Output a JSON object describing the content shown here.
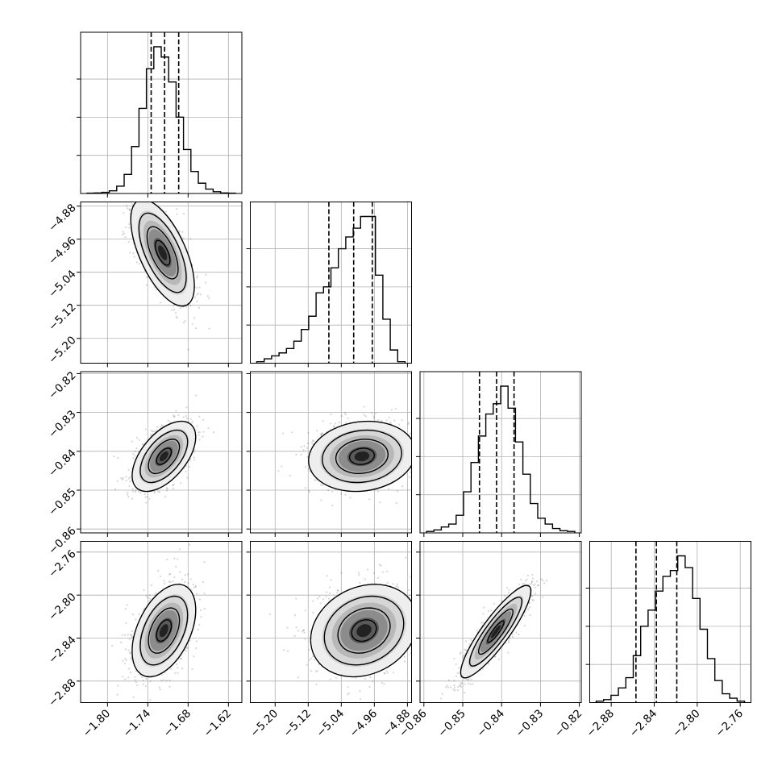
{
  "chart_data": {
    "type": "corner",
    "description_free": true,
    "grid": true,
    "colors": {
      "hist": "#000000",
      "quantile": "#000000",
      "grid": "#b0b0b0",
      "points": "#444444"
    },
    "params": [
      {
        "range": [
          -1.84,
          -1.6
        ],
        "ticks": [
          -1.8,
          -1.74,
          -1.68,
          -1.62
        ],
        "tick_labels": [
          "−1.80",
          "−1.74",
          "−1.68",
          "−1.62"
        ],
        "quantiles": [
          -1.735,
          -1.715,
          -1.694
        ],
        "hist_bins": [
          0.002,
          0.004,
          0.008,
          0.018,
          0.05,
          0.13,
          0.32,
          0.58,
          0.85,
          1.0,
          0.93,
          0.76,
          0.52,
          0.3,
          0.15,
          0.07,
          0.03,
          0.012,
          0.004,
          0.002
        ]
      },
      {
        "range": [
          -5.26,
          -4.87
        ],
        "ticks": [
          -5.2,
          -5.12,
          -5.04,
          -4.96,
          -4.88
        ],
        "tick_labels": [
          "−5.20",
          "−5.12",
          "−5.04",
          "−4.96",
          "−4.88"
        ],
        "quantiles": [
          -5.07,
          -5.01,
          -4.965
        ],
        "hist_bins": [
          0.01,
          0.03,
          0.05,
          0.07,
          0.1,
          0.15,
          0.23,
          0.32,
          0.48,
          0.52,
          0.65,
          0.78,
          0.86,
          0.92,
          1.0,
          1.0,
          0.6,
          0.3,
          0.09,
          0.01
        ]
      },
      {
        "range": [
          -0.861,
          -0.8195
        ],
        "ticks": [
          -0.86,
          -0.85,
          -0.84,
          -0.83,
          -0.82
        ],
        "tick_labels": [
          "−0.86",
          "−0.85",
          "−0.84",
          "−0.83",
          "−0.82"
        ],
        "quantiles": [
          -0.8457,
          -0.8413,
          -0.8368
        ],
        "hist_bins": [
          0.01,
          0.02,
          0.04,
          0.06,
          0.12,
          0.28,
          0.48,
          0.66,
          0.81,
          0.88,
          1.0,
          0.85,
          0.62,
          0.4,
          0.2,
          0.1,
          0.06,
          0.03,
          0.015,
          0.01
        ]
      },
      {
        "range": [
          -2.9,
          -2.75
        ],
        "ticks": [
          -2.88,
          -2.84,
          -2.8,
          -2.76
        ],
        "tick_labels": [
          "−2.88",
          "−2.84",
          "−2.80",
          "−2.76"
        ],
        "quantiles": [
          -2.857,
          -2.838,
          -2.819
        ],
        "hist_bins": [
          0.01,
          0.02,
          0.05,
          0.1,
          0.17,
          0.32,
          0.52,
          0.63,
          0.76,
          0.86,
          0.9,
          1.0,
          0.92,
          0.71,
          0.5,
          0.3,
          0.15,
          0.06,
          0.03,
          0.01
        ]
      }
    ],
    "joint": [
      {
        "i": 1,
        "j": 0,
        "center": [
          -1.718,
          -4.993
        ],
        "sigma": [
          0.022,
          0.06
        ],
        "corr": -0.62
      },
      {
        "i": 2,
        "j": 0,
        "center": [
          -1.716,
          -0.8413
        ],
        "sigma": [
          0.022,
          0.0042
        ],
        "corr": 0.55
      },
      {
        "i": 2,
        "j": 1,
        "center": [
          -4.99,
          -0.8413
        ],
        "sigma": [
          0.06,
          0.0042
        ],
        "corr": 0.12
      },
      {
        "i": 3,
        "j": 0,
        "center": [
          -1.716,
          -2.833
        ],
        "sigma": [
          0.022,
          0.02
        ],
        "corr": 0.45
      },
      {
        "i": 3,
        "j": 1,
        "center": [
          -4.985,
          -2.833
        ],
        "sigma": [
          0.06,
          0.02
        ],
        "corr": 0.2
      },
      {
        "i": 3,
        "j": 2,
        "center": [
          -0.8415,
          -2.834
        ],
        "sigma": [
          0.0042,
          0.02
        ],
        "corr": 0.88
      }
    ]
  }
}
